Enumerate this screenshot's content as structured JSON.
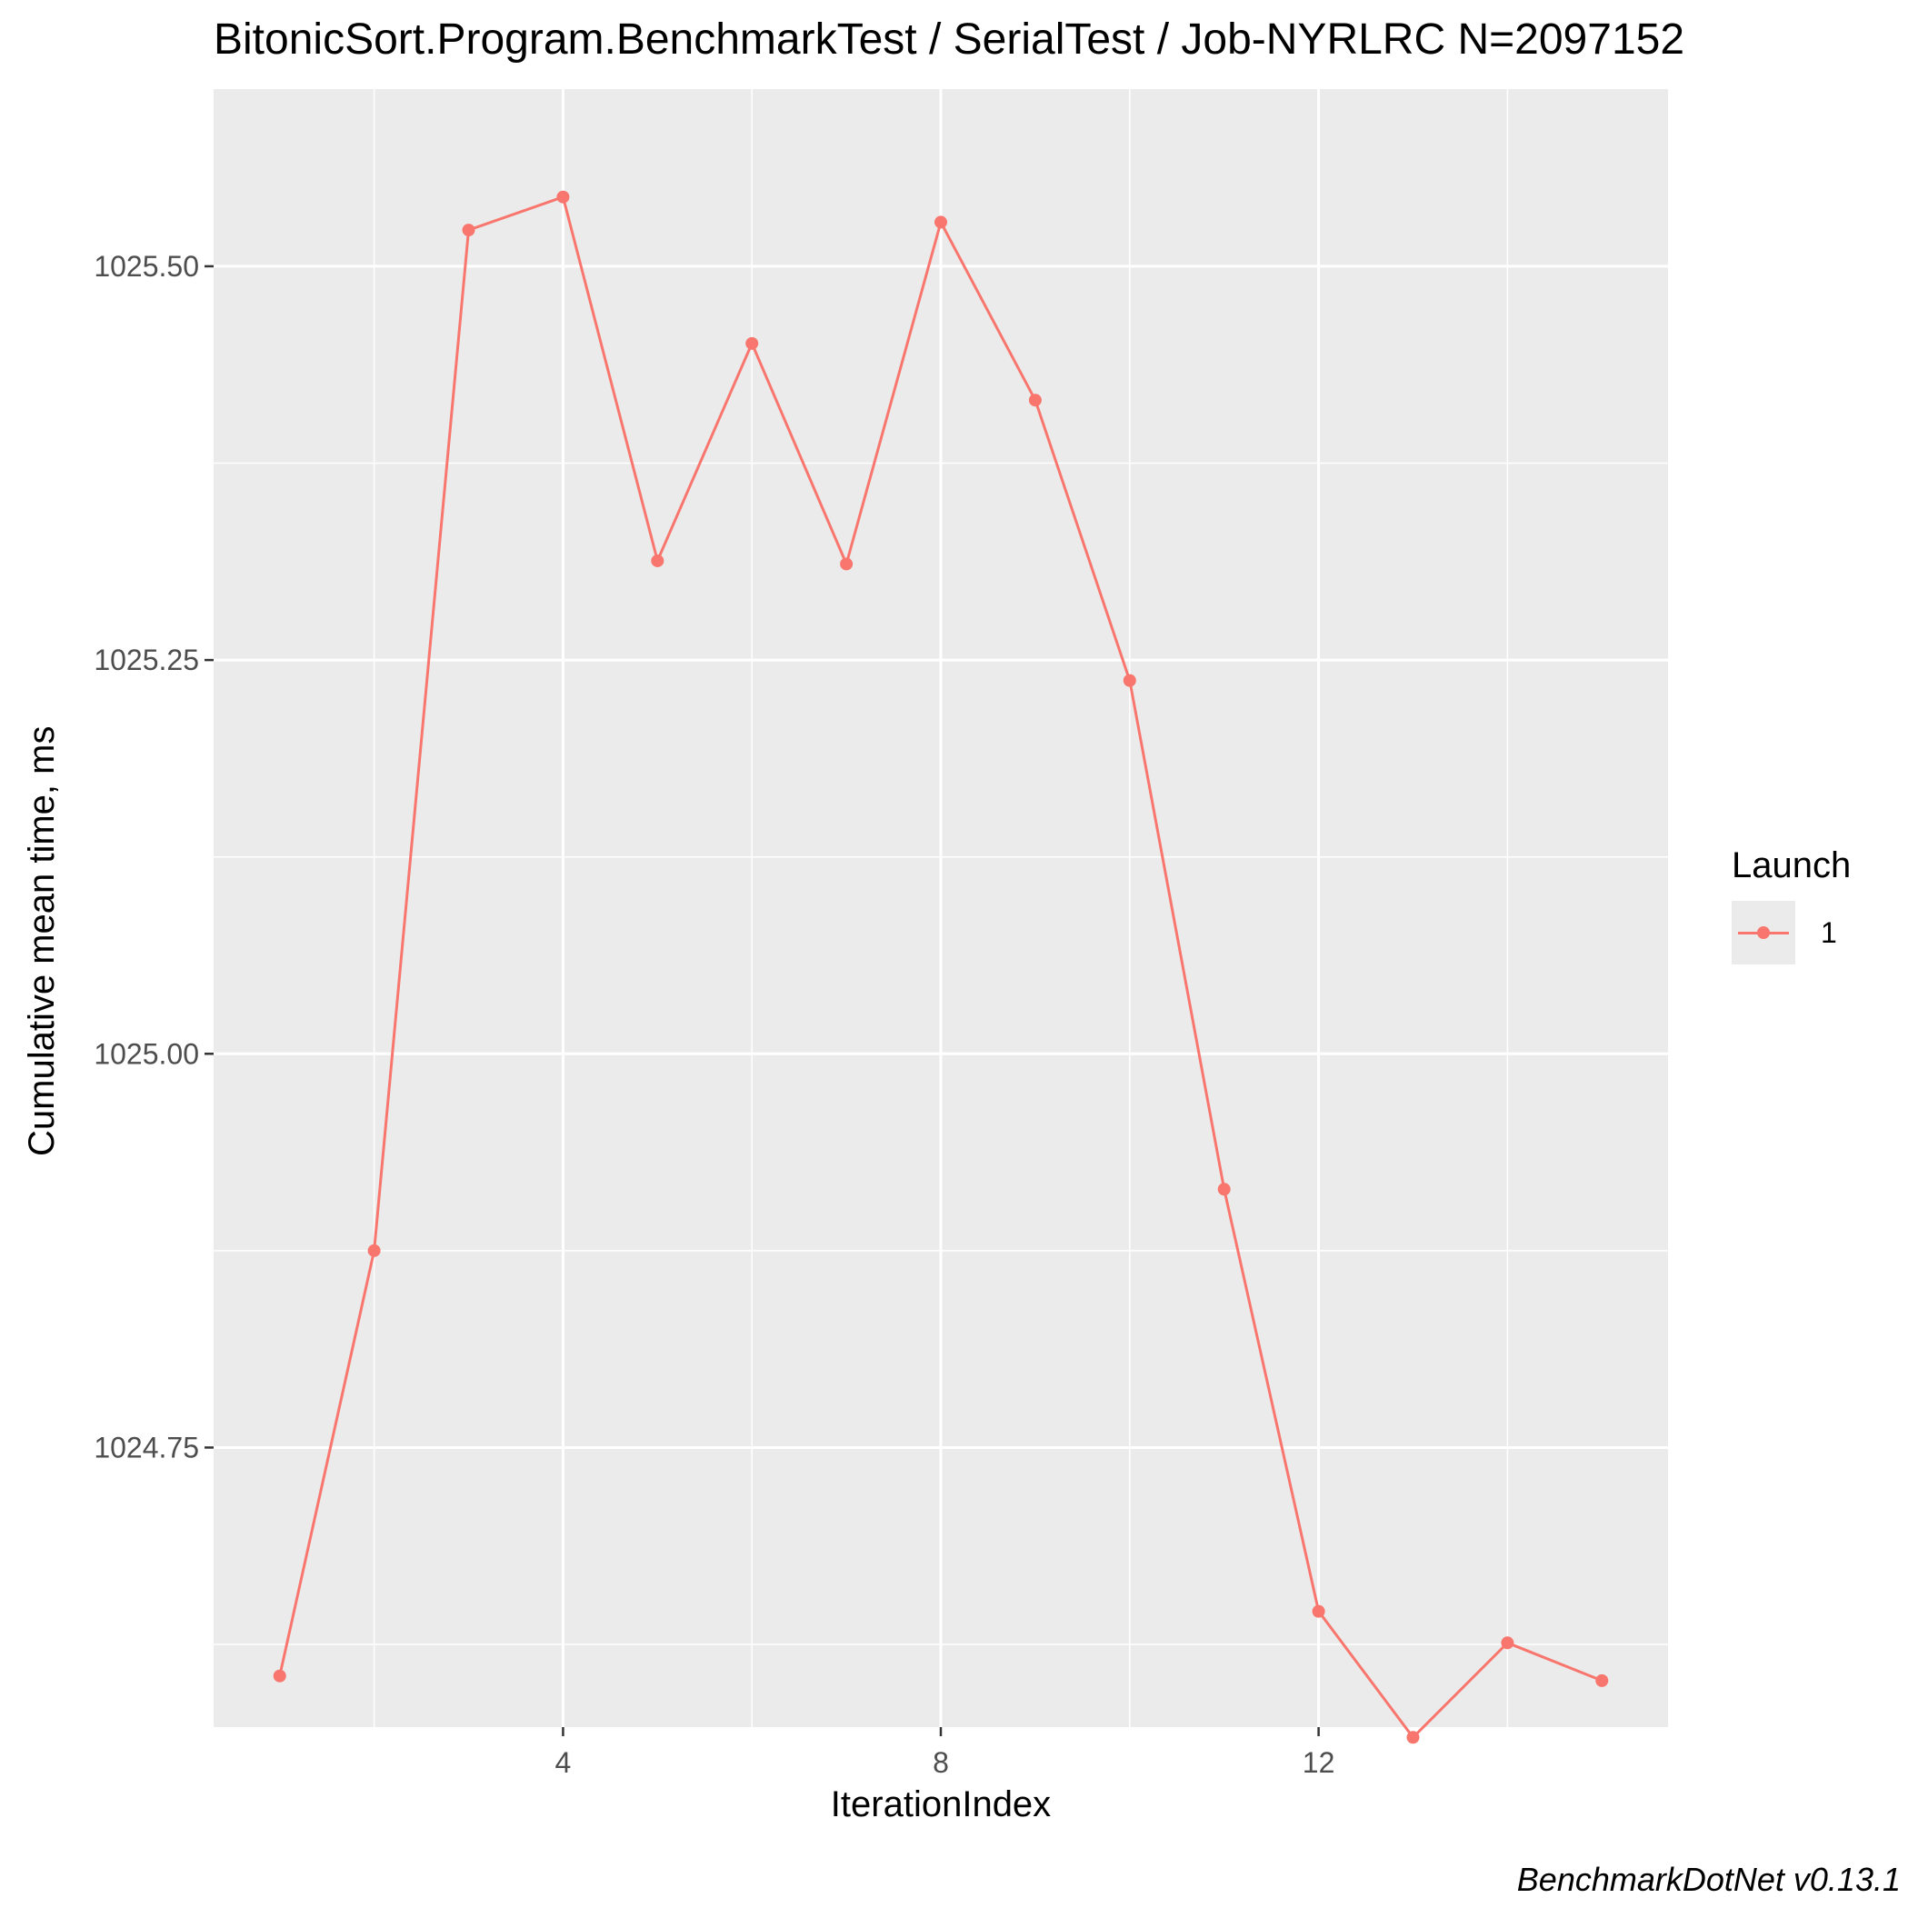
{
  "title": "BitonicSort.Program.BenchmarkTest / SerialTest / Job-NYRLRC N=2097152",
  "caption": "BenchmarkDotNet v0.13.1",
  "colors": {
    "series": "#F8766D",
    "panel": "#EBEBEB",
    "grid": "#FFFFFF",
    "tick": "#4D4D4D"
  },
  "chart_data": {
    "type": "line",
    "xlabel": "IterationIndex",
    "ylabel": "Cumulative mean time, ms",
    "xlim": [
      0.3,
      15.7
    ],
    "ylim": [
      1024.5725,
      1025.6125
    ],
    "x_ticks": [
      4,
      8,
      12
    ],
    "x_tick_labels": [
      "4",
      "8",
      "12"
    ],
    "x_minor_ticks": [
      2,
      6,
      10,
      14
    ],
    "y_ticks": [
      1024.75,
      1025.0,
      1025.25,
      1025.5
    ],
    "y_tick_labels": [
      "1024.75",
      "1025.00",
      "1025.25",
      "1025.50"
    ],
    "y_minor_ticks": [
      1024.625,
      1024.875,
      1025.125,
      1025.375
    ],
    "grid": true,
    "legend": {
      "title": "Launch",
      "position": "right"
    },
    "series": [
      {
        "name": "1",
        "x": [
          1,
          2,
          3,
          4,
          5,
          6,
          7,
          8,
          9,
          10,
          11,
          12,
          13,
          14,
          15
        ],
        "y": [
          1024.605,
          1024.875,
          1025.523,
          1025.544,
          1025.313,
          1025.451,
          1025.311,
          1025.528,
          1025.415,
          1025.237,
          1024.914,
          1024.646,
          1024.566,
          1024.626,
          1024.602
        ]
      }
    ]
  }
}
